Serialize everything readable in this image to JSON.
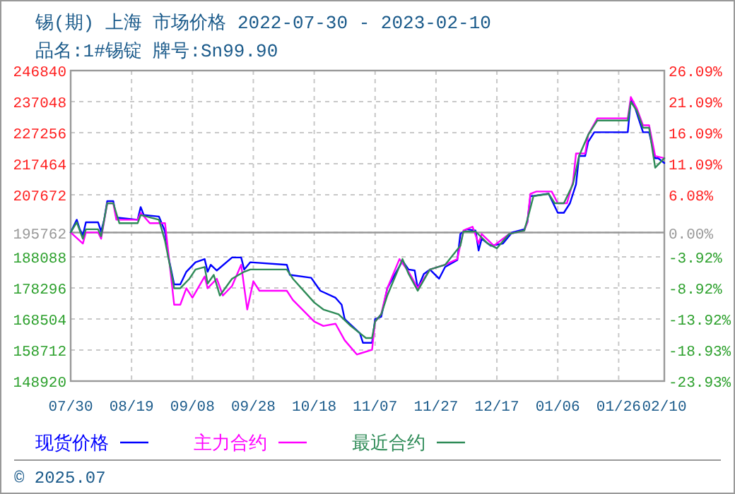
{
  "chart_data": {
    "type": "line",
    "title": "锡(期) 上海 市场价格 2022-07-30 - 2023-02-10",
    "subtitle": "品名:1#锡锭 牌号:Sn99.90",
    "annotations": [
      "© 2025.07"
    ],
    "xlim": [
      "2022-07-30",
      "2023-02-10"
    ],
    "xticks": [
      {
        "value": "2022-07-30",
        "label": "07/30"
      },
      {
        "value": "2022-08-19",
        "label": "08/19"
      },
      {
        "value": "2022-09-08",
        "label": "09/08"
      },
      {
        "value": "2022-09-28",
        "label": "09/28"
      },
      {
        "value": "2022-10-18",
        "label": "10/18"
      },
      {
        "value": "2022-11-07",
        "label": "11/07"
      },
      {
        "value": "2022-11-27",
        "label": "11/27"
      },
      {
        "value": "2022-12-17",
        "label": "12/17"
      },
      {
        "value": "2023-01-06",
        "label": "01/06"
      },
      {
        "value": "2023-01-26",
        "label": "01/26"
      },
      {
        "value": "2023-02-10",
        "label": "02/10"
      }
    ],
    "ylim": [
      148920,
      246840
    ],
    "yticks": [
      246840,
      237048,
      227256,
      217464,
      207672,
      195762,
      188088,
      178296,
      168504,
      158712,
      148920
    ],
    "y2lim": [
      -23.93,
      26.09
    ],
    "y2ticks": [
      {
        "value": 26.09,
        "label": "26.09%"
      },
      {
        "value": 21.09,
        "label": "21.09%"
      },
      {
        "value": 16.09,
        "label": "16.09%"
      },
      {
        "value": 11.09,
        "label": "11.09%"
      },
      {
        "value": 6.08,
        "label": "6.08%"
      },
      {
        "value": 0,
        "label": "0.00%"
      },
      {
        "value": -3.92,
        "label": "-3.92%"
      },
      {
        "value": -8.92,
        "label": "-8.92%"
      },
      {
        "value": -13.92,
        "label": "-13.92%"
      },
      {
        "value": -18.93,
        "label": "-18.93%"
      },
      {
        "value": -23.93,
        "label": "-23.93%"
      }
    ],
    "grid": true,
    "legend": "bottom",
    "marker": "none",
    "line_style": "solid",
    "ref_lines": [
      {
        "axis": "y",
        "value": 195762,
        "color": "#999999",
        "line_style": "solid"
      }
    ],
    "series": [
      {
        "name": "现货价格",
        "color": "#0000ff",
        "x": [
          "2022-07-30",
          "2022-08-01",
          "2022-08-02",
          "2022-08-03",
          "2022-08-04",
          "2022-08-08",
          "2022-08-09",
          "2022-08-10",
          "2022-08-11",
          "2022-08-13",
          "2022-08-14",
          "2022-08-21",
          "2022-08-22",
          "2022-08-23",
          "2022-08-28",
          "2022-08-30",
          "2022-08-31",
          "2022-09-02",
          "2022-09-04",
          "2022-09-06",
          "2022-09-09",
          "2022-09-12",
          "2022-09-13",
          "2022-09-14",
          "2022-09-16",
          "2022-09-21",
          "2022-09-24",
          "2022-09-25",
          "2022-09-27",
          "2022-10-09",
          "2022-10-10",
          "2022-10-17",
          "2022-10-20",
          "2022-10-25",
          "2022-10-27",
          "2022-10-28",
          "2022-11-02",
          "2022-11-03",
          "2022-11-06",
          "2022-11-07",
          "2022-11-09",
          "2022-11-11",
          "2022-11-14",
          "2022-11-16",
          "2022-11-18",
          "2022-11-20",
          "2022-11-21",
          "2022-11-23",
          "2022-11-25",
          "2022-11-28",
          "2022-11-30",
          "2022-12-04",
          "2022-12-05",
          "2022-12-07",
          "2022-12-10",
          "2022-12-11",
          "2022-12-12",
          "2022-12-15",
          "2022-12-19",
          "2022-12-22",
          "2022-12-26",
          "2022-12-27",
          "2022-12-28",
          "2023-01-03",
          "2023-01-06",
          "2023-01-08",
          "2023-01-10",
          "2023-01-12",
          "2023-01-13",
          "2023-01-15",
          "2023-01-16",
          "2023-01-18",
          "2023-01-29",
          "2023-01-30",
          "2023-01-31",
          "2023-02-03",
          "2023-02-05",
          "2023-02-07",
          "2023-02-08",
          "2023-02-10"
        ],
        "values": [
          195800,
          199800,
          196800,
          194900,
          199000,
          199000,
          196100,
          199800,
          205700,
          205700,
          200500,
          199800,
          203800,
          201300,
          200800,
          196100,
          188600,
          179400,
          179400,
          183400,
          186400,
          187400,
          183400,
          185600,
          183800,
          187900,
          187900,
          184100,
          186400,
          185600,
          182400,
          181500,
          177400,
          175200,
          173000,
          168500,
          164000,
          161000,
          161000,
          168500,
          169200,
          178200,
          183400,
          186800,
          184100,
          183800,
          178200,
          182700,
          184100,
          181200,
          184900,
          187100,
          195300,
          196800,
          196400,
          190100,
          193800,
          191600,
          192300,
          195800,
          196800,
          199000,
          207200,
          208000,
          202000,
          202000,
          205000,
          211000,
          219900,
          219900,
          224400,
          227400,
          227400,
          237800,
          236300,
          227400,
          227400,
          219200,
          219200,
          217700
        ]
      },
      {
        "name": "主力合约",
        "color": "#ff00ff",
        "x": [
          "2022-07-30",
          "2022-08-03",
          "2022-08-04",
          "2022-08-08",
          "2022-08-09",
          "2022-08-11",
          "2022-08-13",
          "2022-08-14",
          "2022-08-21",
          "2022-08-22",
          "2022-08-25",
          "2022-08-30",
          "2022-08-31",
          "2022-09-02",
          "2022-09-04",
          "2022-09-06",
          "2022-09-08",
          "2022-09-12",
          "2022-09-13",
          "2022-09-16",
          "2022-09-18",
          "2022-09-21",
          "2022-09-24",
          "2022-09-26",
          "2022-09-28",
          "2022-09-30",
          "2022-10-09",
          "2022-10-11",
          "2022-10-18",
          "2022-10-21",
          "2022-10-25",
          "2022-10-28",
          "2022-11-01",
          "2022-11-06",
          "2022-11-07",
          "2022-11-09",
          "2022-11-11",
          "2022-11-15",
          "2022-11-18",
          "2022-11-21",
          "2022-11-25",
          "2022-11-30",
          "2022-12-04",
          "2022-12-06",
          "2022-12-09",
          "2022-12-11",
          "2022-12-12",
          "2022-12-16",
          "2022-12-21",
          "2022-12-26",
          "2022-12-27",
          "2022-12-28",
          "2022-12-30",
          "2023-01-04",
          "2023-01-06",
          "2023-01-09",
          "2023-01-11",
          "2023-01-12",
          "2023-01-15",
          "2023-01-16",
          "2023-01-19",
          "2023-01-29",
          "2023-01-30",
          "2023-02-01",
          "2023-02-03",
          "2023-02-05",
          "2023-02-07",
          "2023-02-10"
        ],
        "values": [
          195800,
          192300,
          195800,
          195800,
          193800,
          205000,
          205000,
          199800,
          199800,
          202000,
          198700,
          198700,
          190100,
          173000,
          173000,
          178200,
          175200,
          181900,
          178200,
          181200,
          175900,
          178900,
          185600,
          171500,
          180400,
          177400,
          177400,
          174500,
          167700,
          166300,
          167000,
          161800,
          157300,
          158800,
          167700,
          170000,
          178200,
          187400,
          183400,
          178200,
          184100,
          185600,
          187400,
          196400,
          197600,
          192300,
          195300,
          191600,
          195300,
          196400,
          199000,
          208000,
          208700,
          208700,
          205000,
          205000,
          211700,
          220700,
          220700,
          226600,
          231800,
          231800,
          238500,
          234800,
          229600,
          229600,
          219900,
          219200
        ]
      },
      {
        "name": "最近合约",
        "color": "#2e8b57",
        "x": [
          "2022-07-30",
          "2022-08-01",
          "2022-08-03",
          "2022-08-04",
          "2022-08-08",
          "2022-08-09",
          "2022-08-11",
          "2022-08-13",
          "2022-08-15",
          "2022-08-21",
          "2022-08-22",
          "2022-08-28",
          "2022-08-30",
          "2022-09-01",
          "2022-09-02",
          "2022-09-04",
          "2022-09-07",
          "2022-09-09",
          "2022-09-12",
          "2022-09-13",
          "2022-09-15",
          "2022-09-17",
          "2022-09-21",
          "2022-09-25",
          "2022-09-27",
          "2022-10-09",
          "2022-10-11",
          "2022-10-18",
          "2022-10-21",
          "2022-10-26",
          "2022-10-30",
          "2022-11-04",
          "2022-11-06",
          "2022-11-07",
          "2022-11-09",
          "2022-11-11",
          "2022-11-16",
          "2022-11-18",
          "2022-11-21",
          "2022-11-25",
          "2022-11-30",
          "2022-12-05",
          "2022-12-06",
          "2022-12-10",
          "2022-12-14",
          "2022-12-17",
          "2022-12-21",
          "2022-12-26",
          "2022-12-27",
          "2022-12-29",
          "2023-01-03",
          "2023-01-05",
          "2023-01-08",
          "2023-01-11",
          "2023-01-13",
          "2023-01-16",
          "2023-01-19",
          "2023-01-29",
          "2023-01-30",
          "2023-02-01",
          "2023-02-03",
          "2023-02-05",
          "2023-02-07",
          "2023-02-10"
        ],
        "values": [
          195800,
          199000,
          193800,
          196800,
          196800,
          194600,
          205000,
          205000,
          198700,
          198700,
          201300,
          199800,
          193100,
          183400,
          178200,
          178200,
          181200,
          184100,
          184900,
          179700,
          182400,
          175900,
          181200,
          183400,
          184100,
          184100,
          181200,
          173700,
          171500,
          170000,
          166300,
          162500,
          162500,
          167700,
          170000,
          175900,
          187400,
          182700,
          177400,
          184100,
          185600,
          191600,
          196100,
          196100,
          192300,
          190800,
          195300,
          196400,
          199800,
          207200,
          208000,
          205000,
          205000,
          211000,
          219900,
          226600,
          231100,
          231100,
          237000,
          234100,
          228800,
          228800,
          216200,
          219200
        ]
      }
    ]
  }
}
